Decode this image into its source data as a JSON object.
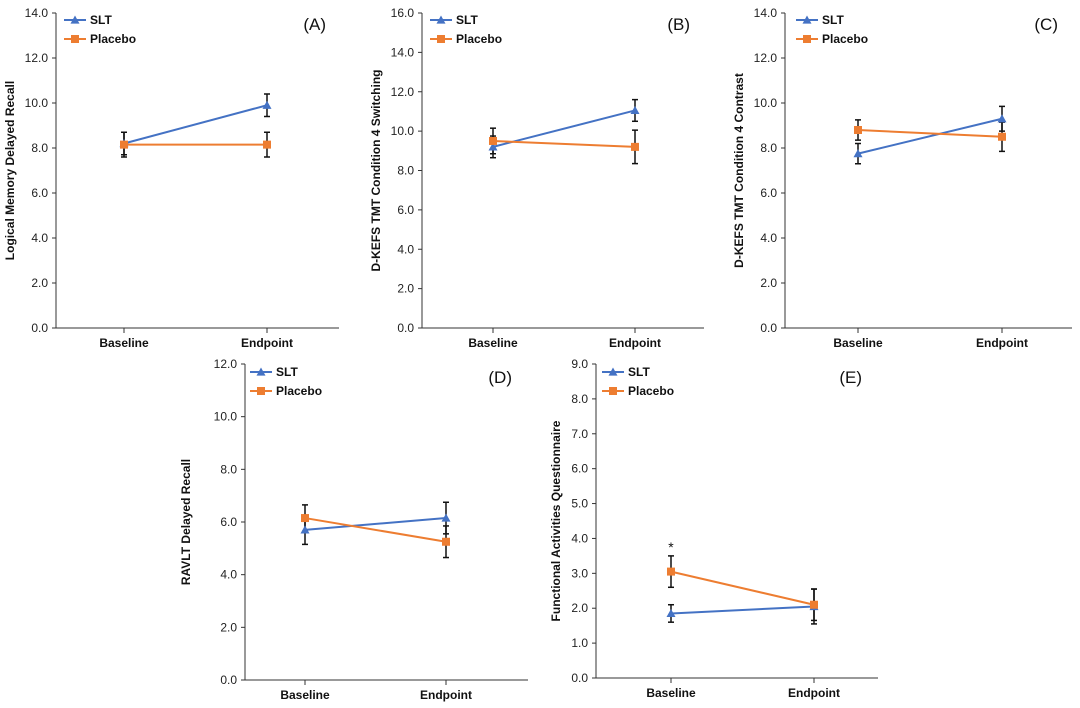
{
  "colors": {
    "slt": "#4472C4",
    "placebo": "#ED7D31",
    "axis": "#333333",
    "error": "#111111"
  },
  "chart_data": [
    {
      "type": "line",
      "panel": "(A)",
      "ylabel": "Logical Memory Delayed Recall",
      "categories": [
        "Baseline",
        "Endpoint"
      ],
      "ylim": [
        0,
        14
      ],
      "ystep": 2,
      "tick_decimals": 1,
      "series": [
        {
          "name": "SLT",
          "values": [
            8.2,
            9.9
          ],
          "errors": [
            0.5,
            0.5
          ]
        },
        {
          "name": "Placebo",
          "values": [
            8.15,
            8.15
          ],
          "errors": [
            0.55,
            0.55
          ]
        }
      ],
      "annotations": []
    },
    {
      "type": "line",
      "panel": "(B)",
      "ylabel": "D-KEFS TMT Condition 4 Switching",
      "categories": [
        "Baseline",
        "Endpoint"
      ],
      "ylim": [
        0,
        16
      ],
      "ystep": 2,
      "tick_decimals": 1,
      "series": [
        {
          "name": "SLT",
          "values": [
            9.2,
            11.05
          ],
          "errors": [
            0.55,
            0.55
          ]
        },
        {
          "name": "Placebo",
          "values": [
            9.5,
            9.2
          ],
          "errors": [
            0.65,
            0.85
          ]
        }
      ],
      "annotations": []
    },
    {
      "type": "line",
      "panel": "(C)",
      "ylabel": "D-KEFS TMT Condition 4 Contrast",
      "categories": [
        "Baseline",
        "Endpoint"
      ],
      "ylim": [
        0,
        14
      ],
      "ystep": 2,
      "tick_decimals": 1,
      "series": [
        {
          "name": "SLT",
          "values": [
            7.75,
            9.3
          ],
          "errors": [
            0.45,
            0.55
          ]
        },
        {
          "name": "Placebo",
          "values": [
            8.8,
            8.5
          ],
          "errors": [
            0.45,
            0.65
          ]
        }
      ],
      "annotations": []
    },
    {
      "type": "line",
      "panel": "(D)",
      "ylabel": "RAVLT Delayed Recall",
      "categories": [
        "Baseline",
        "Endpoint"
      ],
      "ylim": [
        0,
        12
      ],
      "ystep": 2,
      "tick_decimals": 1,
      "series": [
        {
          "name": "SLT",
          "values": [
            5.7,
            6.15
          ],
          "errors": [
            0.55,
            0.6
          ]
        },
        {
          "name": "Placebo",
          "values": [
            6.15,
            5.25
          ],
          "errors": [
            0.5,
            0.6
          ]
        }
      ],
      "annotations": []
    },
    {
      "type": "line",
      "panel": "(E)",
      "ylabel": "Functional Activities Questionnaire",
      "categories": [
        "Baseline",
        "Endpoint"
      ],
      "ylim": [
        0,
        9
      ],
      "ystep": 1,
      "tick_decimals": 1,
      "series": [
        {
          "name": "SLT",
          "values": [
            1.85,
            2.05
          ],
          "errors": [
            0.25,
            0.5
          ]
        },
        {
          "name": "Placebo",
          "values": [
            3.05,
            2.1
          ],
          "errors": [
            0.45,
            0.45
          ]
        }
      ],
      "annotations": [
        {
          "text": "*",
          "category": 0,
          "value": 3.75
        }
      ]
    }
  ]
}
